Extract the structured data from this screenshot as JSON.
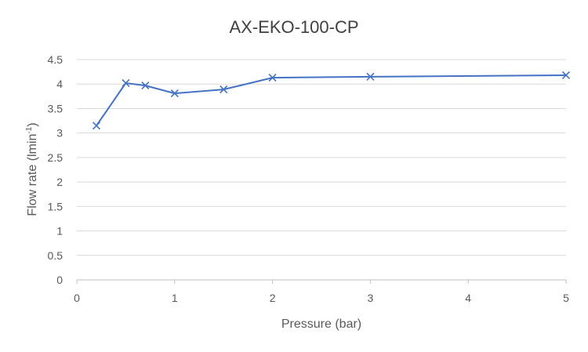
{
  "chart_data": {
    "type": "line",
    "title": "AX-EKO-100-CP",
    "xlabel": "Pressure (bar)",
    "ylabel_main": "Flow rate (lmin",
    "ylabel_sup": "-1",
    "ylabel_close": ")",
    "xlim": [
      0,
      5
    ],
    "ylim": [
      0,
      4.5
    ],
    "x_ticks": [
      0,
      1,
      2,
      3,
      4,
      5
    ],
    "y_ticks": [
      0,
      0.5,
      1,
      1.5,
      2,
      2.5,
      3,
      3.5,
      4,
      4.5
    ],
    "x_tick_labels": [
      "0",
      "1",
      "2",
      "3",
      "4",
      "5"
    ],
    "y_tick_labels": [
      "0",
      "0.5",
      "1",
      "1.5",
      "2",
      "2.5",
      "3",
      "3.5",
      "4",
      "4.5"
    ],
    "grid": true,
    "legend": "none",
    "series": [
      {
        "name": "AX-EKO-100-CP",
        "color": "#4472C4",
        "marker": "x",
        "x": [
          0.2,
          0.5,
          0.7,
          1.0,
          1.5,
          2.0,
          3.0,
          5.0
        ],
        "y": [
          3.15,
          4.02,
          3.97,
          3.81,
          3.89,
          4.13,
          4.15,
          4.18
        ]
      }
    ]
  }
}
